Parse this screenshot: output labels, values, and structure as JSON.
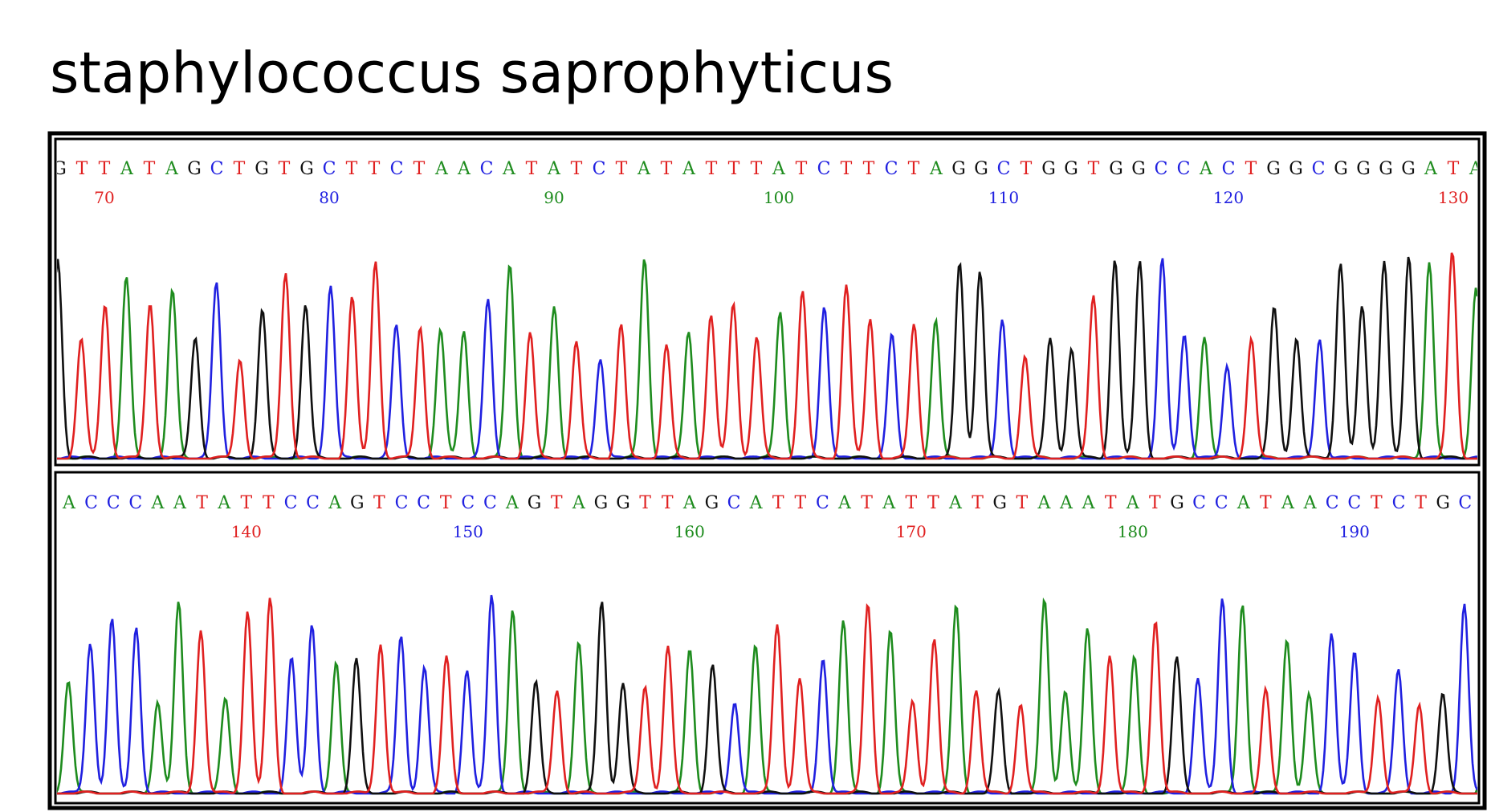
{
  "title": "staphylococcus saprophyticus",
  "base_colors": {
    "A": "#1e8c1e",
    "C": "#2020e0",
    "G": "#101010",
    "T": "#e02020"
  },
  "panels": [
    {
      "start": 68,
      "sequence": "GTTATAGCTGTGCTTCTAACATATCTATATTTATCTTCTAGGCTGGTGGCCACTGGCGGGGATA",
      "labels": [
        70,
        80,
        90,
        100,
        110,
        120,
        130
      ]
    },
    {
      "start": 132,
      "sequence": "ACCCAATATTCCAGTCCTCCAGTAGGTTAGCATTCATATTATGTAAATATGCCATAACCTCTGCA",
      "labels": [
        140,
        150,
        160,
        170,
        180,
        190
      ]
    }
  ]
}
